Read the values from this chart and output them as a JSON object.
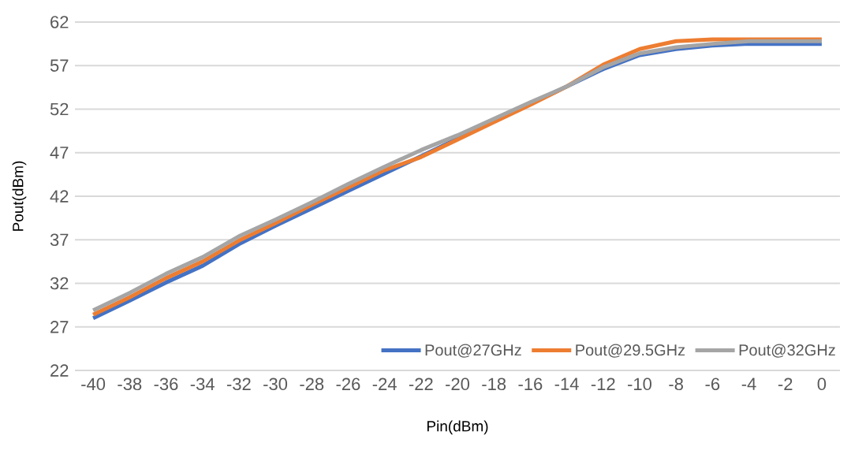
{
  "chart_data": {
    "type": "line",
    "xlabel": "Pin(dBm)",
    "ylabel": "Pout(dBm)",
    "categories": [
      "-40",
      "-38",
      "-36",
      "-34",
      "-32",
      "-30",
      "-28",
      "-26",
      "-24",
      "-22",
      "-20",
      "-18",
      "-16",
      "-14",
      "-12",
      "-10",
      "-8",
      "-6",
      "-4",
      "-2",
      "0"
    ],
    "series": [
      {
        "name": "Pout@27GHz",
        "color": "#4472c4",
        "values": [
          28.0,
          30.0,
          32.1,
          34.0,
          36.5,
          38.6,
          40.6,
          42.6,
          44.6,
          46.6,
          48.6,
          null,
          null,
          54.6,
          56.6,
          58.2,
          58.9,
          59.3,
          59.5,
          59.5,
          59.5
        ]
      },
      {
        "name": "Pout@29.5GHz",
        "color": "#ed7d31",
        "values": [
          28.4,
          30.4,
          32.6,
          34.5,
          36.9,
          38.9,
          41.0,
          43.0,
          45.0,
          46.5,
          48.5,
          50.5,
          52.5,
          54.6,
          57.1,
          58.9,
          59.8,
          60.0,
          60.0,
          60.0,
          60.0
        ]
      },
      {
        "name": "Pout@32GHz",
        "color": "#a5a5a5",
        "values": [
          28.9,
          30.9,
          33.1,
          35.0,
          37.4,
          39.3,
          41.3,
          43.4,
          45.4,
          47.3,
          49.0,
          50.9,
          52.8,
          54.6,
          56.8,
          58.4,
          59.1,
          59.5,
          59.8,
          59.8,
          59.8
        ]
      }
    ],
    "ylim": [
      22,
      62
    ],
    "yticks": [
      22,
      27,
      32,
      37,
      42,
      47,
      52,
      57,
      62
    ],
    "grid": "y",
    "legend": "bottom right",
    "marker": "none",
    "line_style": "solid"
  }
}
